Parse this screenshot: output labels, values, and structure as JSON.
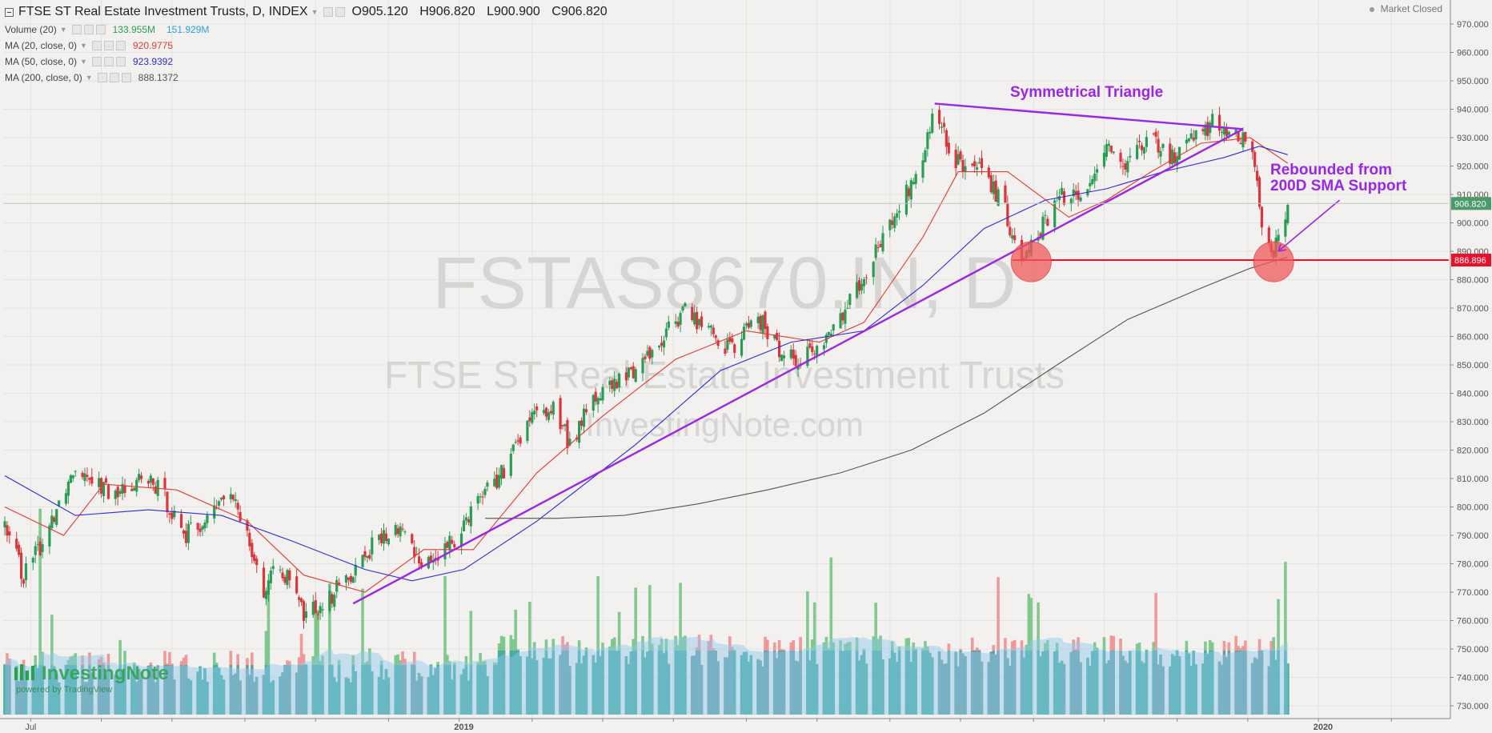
{
  "header": {
    "title": "FTSE ST Real Estate Investment Trusts, D, INDEX",
    "open": "O905.120",
    "high": "H906.820",
    "low": "L900.900",
    "close": "C906.820",
    "market_status": "Market Closed"
  },
  "indicators": [
    {
      "label": "Volume (20)",
      "values": [
        "133.955M",
        "151.929M"
      ],
      "colors": [
        "#2a9d55",
        "#29a3d6"
      ]
    },
    {
      "label": "MA (20, close, 0)",
      "values": [
        "920.9775"
      ],
      "colors": [
        "#e53935"
      ]
    },
    {
      "label": "MA (50, close, 0)",
      "values": [
        "923.9392"
      ],
      "colors": [
        "#2b2bd8"
      ]
    },
    {
      "label": "MA (200, close, 0)",
      "values": [
        "888.1372"
      ],
      "colors": [
        "#555555"
      ]
    }
  ],
  "watermark": {
    "line1": "FSTAS8670.IN, D",
    "line2": "FTSE ST Real Estate Investment Trusts",
    "line3": "InvestingNote.com"
  },
  "brand": {
    "name": "InvestingNote",
    "sub": "powered by TradingView"
  },
  "chart_data": {
    "type": "candlestick",
    "title": "FTSE ST Real Estate Investment Trusts, D, INDEX",
    "ylim": [
      725,
      975
    ],
    "y_ticks": [
      730,
      740,
      750,
      760,
      770,
      780,
      790,
      800,
      810,
      820,
      830,
      840,
      850,
      860,
      870,
      880,
      890,
      900,
      910,
      920,
      930,
      940,
      950,
      960,
      970
    ],
    "y_tick_labels": [
      "730.000",
      "740.000",
      "750.000",
      "760.000",
      "770.000",
      "780.000",
      "790.000",
      "800.000",
      "810.000",
      "820.000",
      "830.000",
      "840.000",
      "850.000",
      "860.000",
      "870.000",
      "880.000",
      "890.000",
      "900.000",
      "910.000",
      "920.000",
      "930.000",
      "940.000",
      "950.000",
      "960.000",
      "970.000"
    ],
    "x_range": [
      "2018-06-20",
      "2020-02-20"
    ],
    "x_tick_labels": [
      {
        "date": "2018-07-01",
        "label": "Jul"
      },
      {
        "date": "2019-01-01",
        "label": "2019"
      },
      {
        "date": "2020-01-01",
        "label": "2020"
      }
    ],
    "gridlines": true,
    "price_path": [
      [
        "2018-06-20",
        792
      ],
      [
        "2018-06-28",
        776
      ],
      [
        "2018-07-05",
        786
      ],
      [
        "2018-07-12",
        800
      ],
      [
        "2018-07-20",
        815
      ],
      [
        "2018-07-26",
        812
      ],
      [
        "2018-08-05",
        803
      ],
      [
        "2018-08-15",
        810
      ],
      [
        "2018-08-25",
        806
      ],
      [
        "2018-09-05",
        790
      ],
      [
        "2018-09-15",
        796
      ],
      [
        "2018-09-22",
        805
      ],
      [
        "2018-09-30",
        795
      ],
      [
        "2018-10-08",
        770
      ],
      [
        "2018-10-15",
        780
      ],
      [
        "2018-10-25",
        762
      ],
      [
        "2018-11-05",
        768
      ],
      [
        "2018-11-15",
        778
      ],
      [
        "2018-11-25",
        788
      ],
      [
        "2018-12-05",
        792
      ],
      [
        "2018-12-15",
        780
      ],
      [
        "2018-12-25",
        785
      ],
      [
        "2019-01-08",
        805
      ],
      [
        "2019-01-18",
        812
      ],
      [
        "2019-01-28",
        830
      ],
      [
        "2019-02-08",
        835
      ],
      [
        "2019-02-15",
        822
      ],
      [
        "2019-02-25",
        838
      ],
      [
        "2019-03-10",
        845
      ],
      [
        "2019-03-25",
        858
      ],
      [
        "2019-04-05",
        870
      ],
      [
        "2019-04-15",
        862
      ],
      [
        "2019-04-25",
        855
      ],
      [
        "2019-05-05",
        868
      ],
      [
        "2019-05-15",
        855
      ],
      [
        "2019-05-25",
        852
      ],
      [
        "2019-06-05",
        860
      ],
      [
        "2019-06-15",
        875
      ],
      [
        "2019-06-25",
        890
      ],
      [
        "2019-07-05",
        905
      ],
      [
        "2019-07-15",
        922
      ],
      [
        "2019-07-20",
        940
      ],
      [
        "2019-07-28",
        922
      ],
      [
        "2019-08-08",
        918
      ],
      [
        "2019-08-18",
        907
      ],
      [
        "2019-08-25",
        888
      ],
      [
        "2019-09-05",
        900
      ],
      [
        "2019-09-12",
        910
      ],
      [
        "2019-09-20",
        908
      ],
      [
        "2019-10-01",
        928
      ],
      [
        "2019-10-10",
        920
      ],
      [
        "2019-10-20",
        930
      ],
      [
        "2019-10-28",
        922
      ],
      [
        "2019-11-05",
        930
      ],
      [
        "2019-11-15",
        935
      ],
      [
        "2019-11-25",
        930
      ],
      [
        "2019-11-30",
        928
      ],
      [
        "2019-12-03",
        920
      ],
      [
        "2019-12-06",
        895
      ],
      [
        "2019-12-10",
        889
      ],
      [
        "2019-12-14",
        898
      ],
      [
        "2019-12-17",
        906.82
      ]
    ],
    "moving_averages": [
      {
        "name": "MA (20, close, 0)",
        "color": "#e53935",
        "points": [
          [
            "2018-06-20",
            800
          ],
          [
            "2018-07-15",
            790
          ],
          [
            "2018-08-01",
            808
          ],
          [
            "2018-09-01",
            806
          ],
          [
            "2018-10-01",
            795
          ],
          [
            "2018-10-25",
            776
          ],
          [
            "2018-11-20",
            770
          ],
          [
            "2018-12-15",
            785
          ],
          [
            "2019-01-05",
            785
          ],
          [
            "2019-02-01",
            812
          ],
          [
            "2019-03-01",
            832
          ],
          [
            "2019-04-01",
            852
          ],
          [
            "2019-05-01",
            862
          ],
          [
            "2019-06-01",
            858
          ],
          [
            "2019-06-20",
            865
          ],
          [
            "2019-07-15",
            895
          ],
          [
            "2019-07-30",
            918
          ],
          [
            "2019-08-20",
            918
          ],
          [
            "2019-09-15",
            902
          ],
          [
            "2019-10-01",
            908
          ],
          [
            "2019-10-20",
            918
          ],
          [
            "2019-11-10",
            928
          ],
          [
            "2019-12-01",
            930
          ],
          [
            "2019-12-17",
            921
          ]
        ]
      },
      {
        "name": "MA (50, close, 0)",
        "color": "#2b2bd8",
        "points": [
          [
            "2018-06-20",
            811
          ],
          [
            "2018-07-20",
            797
          ],
          [
            "2018-08-20",
            799
          ],
          [
            "2018-09-20",
            797
          ],
          [
            "2018-10-20",
            788
          ],
          [
            "2018-11-20",
            778
          ],
          [
            "2018-12-10",
            774
          ],
          [
            "2019-01-01",
            778
          ],
          [
            "2019-02-01",
            795
          ],
          [
            "2019-03-15",
            822
          ],
          [
            "2019-04-20",
            848
          ],
          [
            "2019-05-20",
            858
          ],
          [
            "2019-06-20",
            862
          ],
          [
            "2019-07-15",
            878
          ],
          [
            "2019-08-10",
            898
          ],
          [
            "2019-09-05",
            908
          ],
          [
            "2019-10-01",
            912
          ],
          [
            "2019-10-25",
            918
          ],
          [
            "2019-11-20",
            923
          ],
          [
            "2019-12-05",
            927
          ],
          [
            "2019-12-17",
            924
          ]
        ]
      },
      {
        "name": "MA (200, close, 0)",
        "color": "#555555",
        "points": [
          [
            "2019-01-10",
            796
          ],
          [
            "2019-02-10",
            796
          ],
          [
            "2019-03-10",
            797
          ],
          [
            "2019-04-10",
            801
          ],
          [
            "2019-05-10",
            806
          ],
          [
            "2019-06-10",
            812
          ],
          [
            "2019-07-10",
            820
          ],
          [
            "2019-08-10",
            833
          ],
          [
            "2019-09-10",
            850
          ],
          [
            "2019-10-10",
            866
          ],
          [
            "2019-11-10",
            877
          ],
          [
            "2019-12-01",
            884
          ],
          [
            "2019-12-17",
            888
          ]
        ]
      }
    ],
    "volume": {
      "max": 800,
      "min": 0,
      "bands": "volume-bars"
    },
    "annotations": {
      "pattern_label": "Symmetrical Triangle",
      "support_label_line1": "Rebounded from",
      "support_label_line2": "200D SMA Support",
      "current_price": "906.820",
      "support_price": "886.896",
      "support_value": 886.896,
      "current_value": 906.82,
      "uptrend_line": [
        [
          "2018-11-15",
          766
        ],
        [
          "2019-11-28",
          933
        ]
      ],
      "upper_trend_line": [
        [
          "2019-07-20",
          942
        ],
        [
          "2019-11-28",
          933
        ]
      ],
      "support_circles": [
        [
          "2019-08-30",
          888
        ],
        [
          "2019-12-11",
          888
        ]
      ],
      "rebound_arrow": [
        [
          "2020-01-08",
          908
        ],
        [
          "2019-12-13",
          890
        ]
      ]
    },
    "colors": {
      "up": "#2a9d55",
      "down": "#d9363e",
      "pattern": "#9c27e0",
      "support": "#e8102a",
      "current": "#4b9a6a",
      "volume_up": "#6dc27f",
      "volume_down": "#f08a8a",
      "volume_ma": "#8fc7ee",
      "volume_teal": "#3aa3a8"
    }
  }
}
